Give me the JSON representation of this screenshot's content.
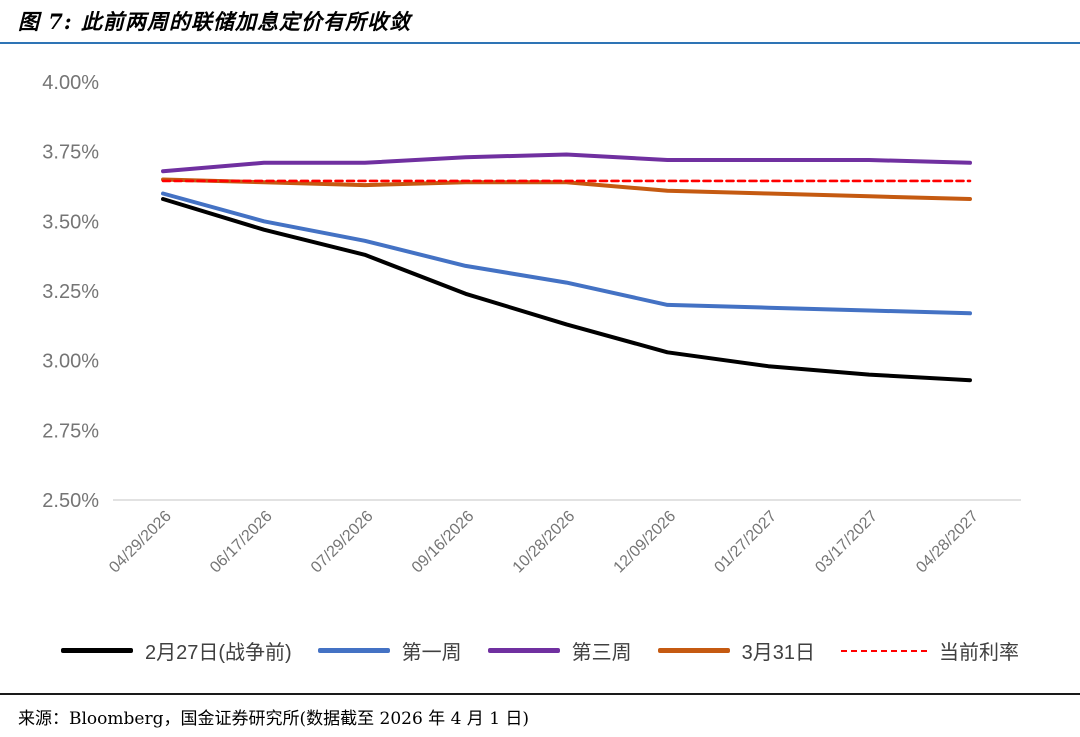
{
  "header": {
    "title": "图 7: 此前两周的联储加息定价有所收敛"
  },
  "footer": {
    "source": "来源：Bloomberg，国金证券研究所(数据截至 2026 年 4 月 1 日)"
  },
  "colors": {
    "title_rule": "#2E74B5",
    "axis_text": "#757575",
    "axis_line": "#D9D9D9",
    "legend_text": "#404040",
    "footer_rule": "#1a1a1a",
    "series_black": "#000000",
    "series_blue": "#4472C4",
    "series_purple": "#7030A0",
    "series_orange": "#C55A11",
    "series_red": "#FF0000"
  },
  "chart_data": {
    "type": "line",
    "title": "",
    "xlabel": "",
    "ylabel": "",
    "grid": false,
    "legend_position": "bottom",
    "categories": [
      "04/29/2026",
      "06/17/2026",
      "07/29/2026",
      "09/16/2026",
      "10/28/2026",
      "12/09/2026",
      "01/27/2027",
      "03/17/2027",
      "04/28/2027"
    ],
    "y_axis": {
      "min": 2.5,
      "max": 4.0,
      "step": 0.25,
      "unit": "%",
      "tick_labels": [
        "4.00%",
        "3.75%",
        "3.50%",
        "3.25%",
        "3.00%",
        "2.75%",
        "2.50%"
      ]
    },
    "series": [
      {
        "name": "2月27日(战争前)",
        "color": "#000000",
        "style": "solid",
        "values": [
          3.58,
          3.47,
          3.38,
          3.24,
          3.13,
          3.03,
          2.98,
          2.95,
          2.93
        ]
      },
      {
        "name": "第一周",
        "color": "#4472C4",
        "style": "solid",
        "values": [
          3.6,
          3.5,
          3.43,
          3.34,
          3.28,
          3.2,
          3.19,
          3.18,
          3.17
        ]
      },
      {
        "name": "第三周",
        "color": "#7030A0",
        "style": "solid",
        "values": [
          3.68,
          3.71,
          3.71,
          3.73,
          3.74,
          3.72,
          3.72,
          3.72,
          3.71
        ]
      },
      {
        "name": "3月31日",
        "color": "#C55A11",
        "style": "solid",
        "values": [
          3.65,
          3.64,
          3.63,
          3.64,
          3.64,
          3.61,
          3.6,
          3.59,
          3.58
        ]
      },
      {
        "name": "当前利率",
        "color": "#FF0000",
        "style": "dashed",
        "values": [
          3.645,
          3.645,
          3.645,
          3.645,
          3.645,
          3.645,
          3.645,
          3.645,
          3.645
        ]
      }
    ]
  }
}
